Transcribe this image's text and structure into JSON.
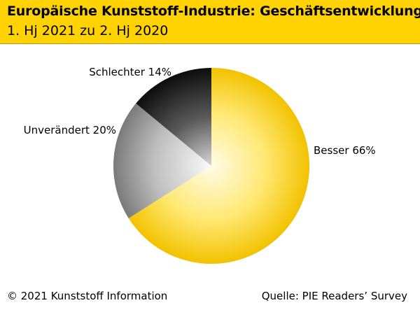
{
  "header": {
    "title": "Europäische Kunststoff-Industrie: Geschäftsentwicklung",
    "subtitle": "1. Hj 2021 zu 2. Hj 2020",
    "background_color": "#ffd200"
  },
  "chart_data": {
    "type": "pie",
    "title": "Europäische Kunststoff-Industrie: Geschäftsentwicklung",
    "subtitle": "1. Hj 2021 zu 2. Hj 2020",
    "slices": [
      {
        "label": "Besser",
        "value": 66,
        "display": "Besser 66%",
        "color": "#ffd200"
      },
      {
        "label": "Unverändert",
        "value": 20,
        "display": "Unverändert 20%",
        "color": "#9a9a9a"
      },
      {
        "label": "Schlechter",
        "value": 14,
        "display": "Schlechter 14%",
        "color": "#1a1a1a"
      }
    ],
    "start": "12 o'clock",
    "direction": "clockwise"
  },
  "footer": {
    "copyright": "© 2021 Kunststoff Information",
    "source": "Quelle: PIE Readers’ Survey"
  }
}
